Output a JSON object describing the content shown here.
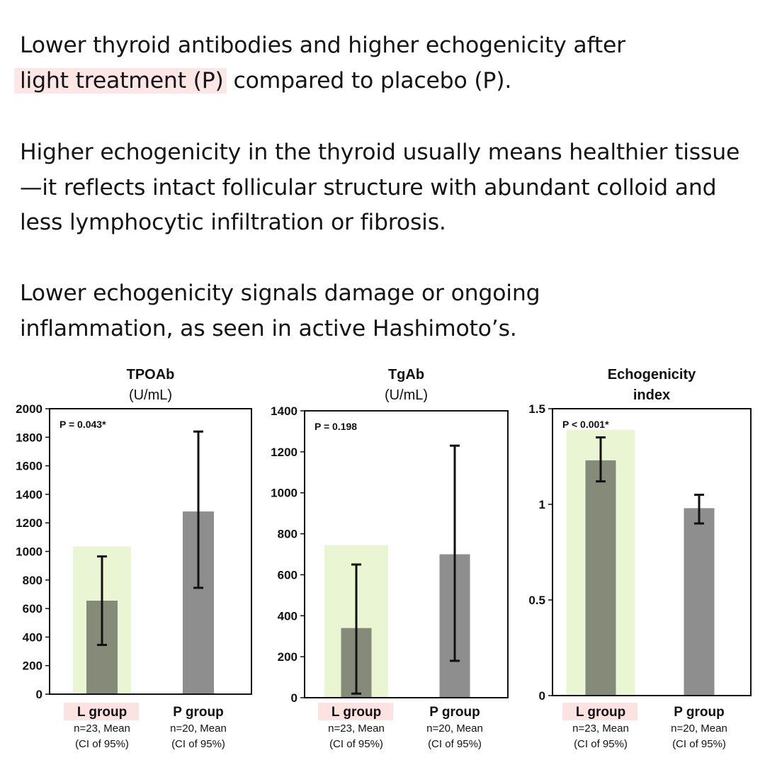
{
  "text": {
    "p1_line1": "Lower thyroid antibodies and higher echogenicity after",
    "p1_highlight": "light treatment (P)",
    "p1_rest": " compared to placebo (P).",
    "p2": "Higher echogenicity in the thyroid usually means healthier tissue—it reflects intact follicular structure with abundant colloid and less lymphocytic infiltration or fibrosis.",
    "p3": "Lower echogenicity signals damage or ongoing inflammation, as seen in active Hashimoto’s."
  },
  "colors": {
    "l_bar": "#858b78",
    "p_bar": "#8e8e8e",
    "l_highlight": "#eaf5d3",
    "label_highlight": "#fde2e2"
  },
  "chart_data": [
    {
      "type": "bar",
      "title": "TPOAb",
      "subtitle": "(U/mL)",
      "p_value": "P = 0.043*",
      "ylim": [
        0,
        2000
      ],
      "yticks": [
        "0",
        "200",
        "400",
        "600",
        "800",
        "1000",
        "1200",
        "1400",
        "1600",
        "1800",
        "2000"
      ],
      "ytick_values": [
        0,
        200,
        400,
        600,
        800,
        1000,
        1200,
        1400,
        1600,
        1800,
        2000
      ],
      "categories": [
        "L group",
        "P group"
      ],
      "category_notes": [
        [
          "n=23, Mean",
          "(CI of 95%)"
        ],
        [
          "n=20, Mean",
          "(CI of 95%)"
        ]
      ],
      "values": [
        655,
        1280
      ],
      "ci_low": [
        345,
        745
      ],
      "ci_high": [
        965,
        1840
      ],
      "l_highlight_top": 1035
    },
    {
      "type": "bar",
      "title": "TgAb",
      "subtitle": "(U/mL)",
      "p_value": "P = 0.198",
      "ylim": [
        0,
        1400
      ],
      "yticks": [
        "0",
        "200",
        "400",
        "600",
        "800",
        "1000",
        "1200",
        "1400"
      ],
      "ytick_values": [
        0,
        200,
        400,
        600,
        800,
        1000,
        1200,
        1400
      ],
      "categories": [
        "L group",
        "P group"
      ],
      "category_notes": [
        [
          "n=23, Mean",
          "(CI of 95%)"
        ],
        [
          "n=20, Mean",
          "(CI of 95%)"
        ]
      ],
      "values": [
        340,
        700
      ],
      "ci_low": [
        20,
        180
      ],
      "ci_high": [
        650,
        1230
      ],
      "l_highlight_top": 745
    },
    {
      "type": "bar",
      "title": "Echogenicity",
      "subtitle": "index",
      "p_value": "P < 0.001*",
      "ylim": [
        0,
        1.5
      ],
      "yticks": [
        "0",
        "0.5",
        "1",
        "1.5"
      ],
      "ytick_values": [
        0,
        0.5,
        1,
        1.5
      ],
      "categories": [
        "L group",
        "P group"
      ],
      "category_notes": [
        [
          "n=23, Mean",
          "(CI of 95%)"
        ],
        [
          "n=20, Mean",
          "(CI of 95%)"
        ]
      ],
      "values": [
        1.23,
        0.98
      ],
      "ci_low": [
        1.12,
        0.9
      ],
      "ci_high": [
        1.35,
        1.05
      ],
      "l_highlight_top": 1.39
    }
  ]
}
